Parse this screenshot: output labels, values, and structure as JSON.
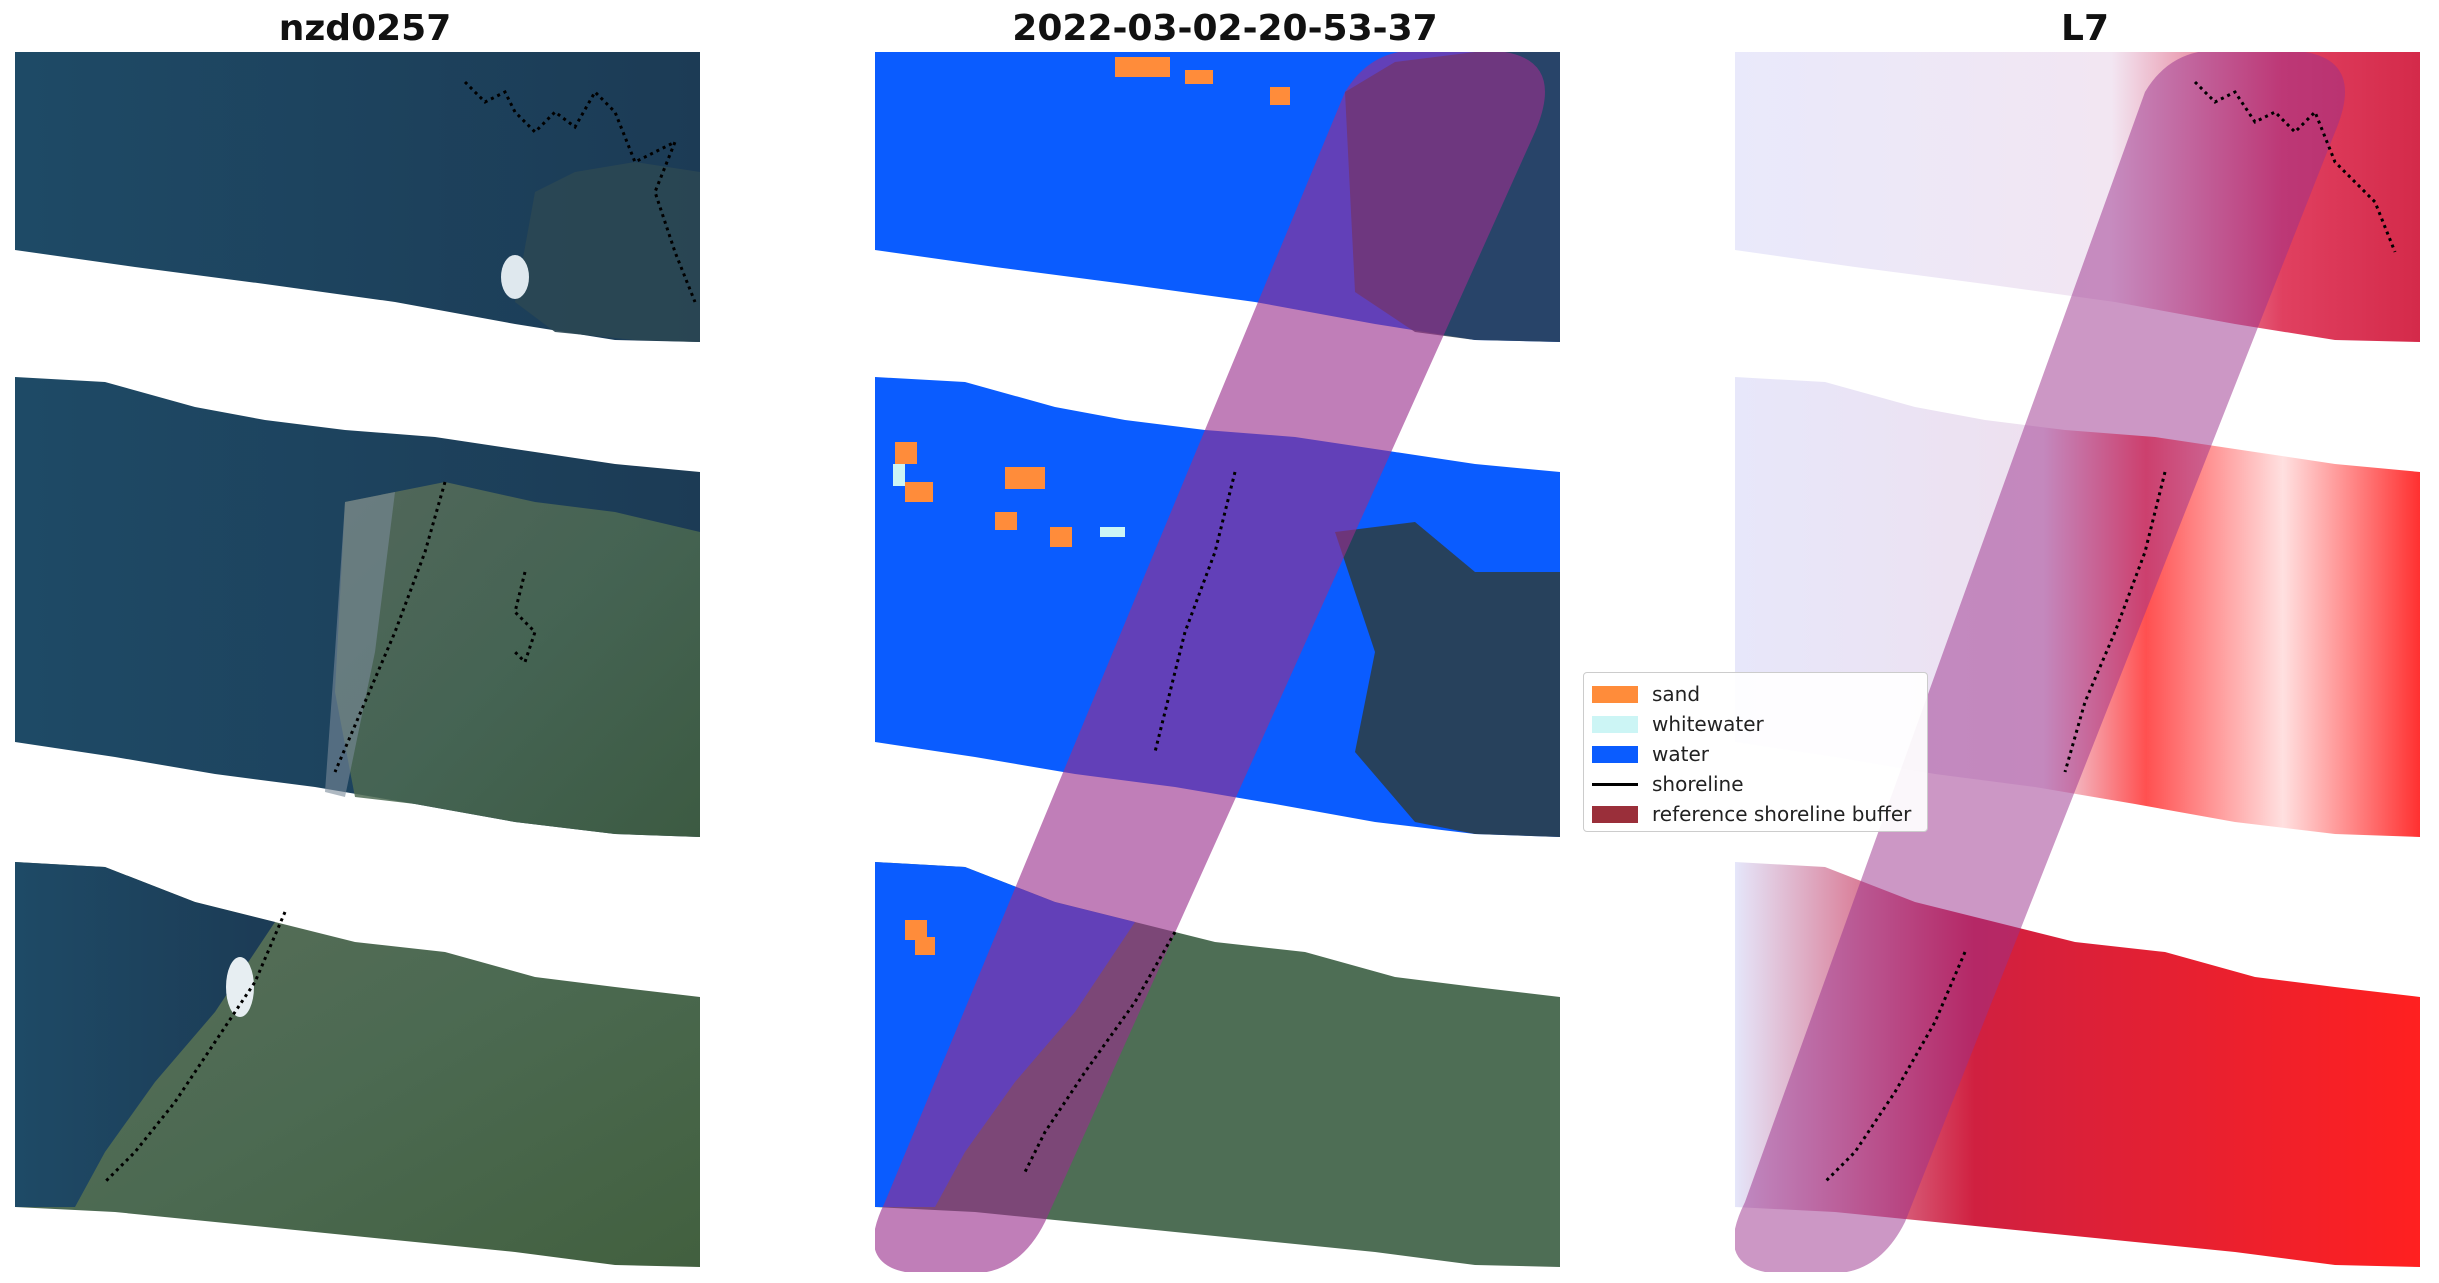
{
  "panels": [
    {
      "title": "nzd0257",
      "icon": "rgb-satellite-image"
    },
    {
      "title": "2022-03-02-20-53-37",
      "icon": "classified-image-overlay"
    },
    {
      "title": "L7",
      "icon": "water-index-image"
    }
  ],
  "legend": {
    "items": [
      {
        "label": "sand",
        "color": "#ff8c3a"
      },
      {
        "label": "whitewater",
        "color": "#ccf5f5"
      },
      {
        "label": "water",
        "color": "#0a5cff"
      },
      {
        "label": "shoreline",
        "color": "#000000"
      },
      {
        "label": "reference shoreline buffer",
        "color": "#9a2f3a"
      }
    ]
  },
  "colors": {
    "buffer_overlay": "#b8588c",
    "sea_rgb": "#1f4a63",
    "land_rgb": "#4e6e55",
    "index_low": "#e8e8fb",
    "index_high": "#ff2a2a"
  }
}
